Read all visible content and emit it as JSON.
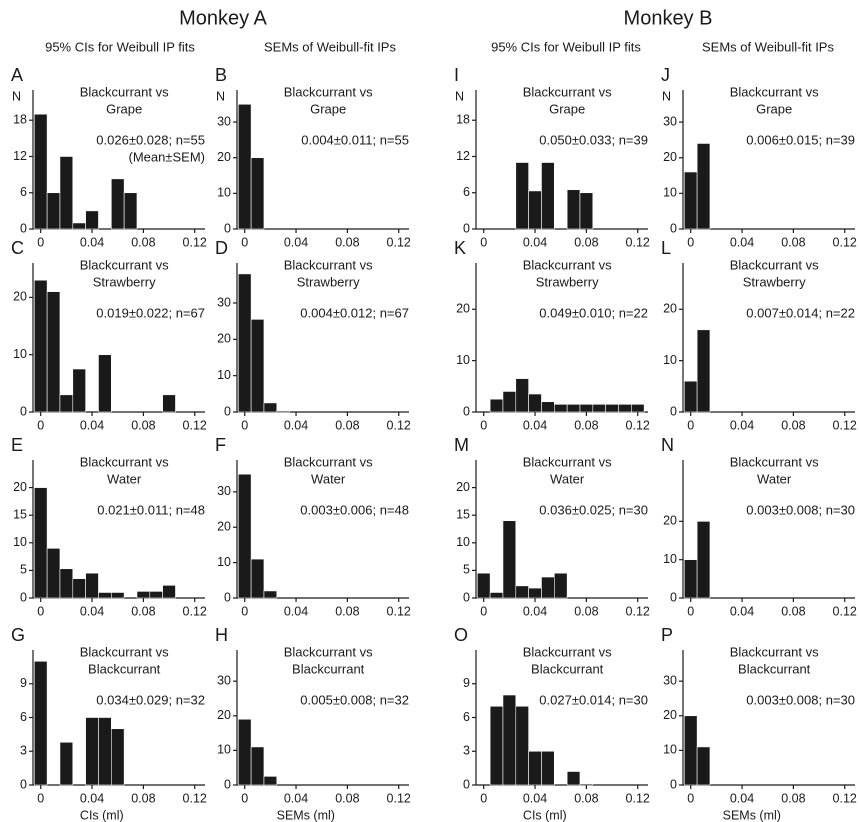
{
  "figure": {
    "monkeys": [
      "Monkey A",
      "Monkey B"
    ],
    "columns": [
      "95% CIs for Weibull IP fits",
      "SEMs of Weibull-fit IPs",
      "95% CIs for Weibull IP fits",
      "SEMs of Weibull-fit IPs"
    ]
  },
  "chart_data": [
    {
      "type": "histogram",
      "panel": "A",
      "title": [
        "Blackcurrant vs",
        "Grape"
      ],
      "annotation": [
        "0.026±0.028; n=55",
        "(Mean±SEM)"
      ],
      "ylabel": "N",
      "color": "#1a1a1a",
      "bins": [
        -0.005,
        0.005,
        0.015,
        0.025,
        0.035,
        0.045,
        0.055,
        0.065,
        0.075,
        0.085,
        0.095,
        0.105,
        0.115,
        0.125
      ],
      "counts": [
        19,
        6,
        12,
        1,
        3,
        0,
        8.3,
        6,
        0,
        0,
        0,
        0,
        0
      ],
      "xlim": [
        -0.006,
        0.128
      ],
      "xticks": [
        0,
        0.04,
        0.08,
        0.12
      ],
      "ylim": [
        0,
        23
      ],
      "yticks": [
        0,
        6,
        12,
        18
      ]
    },
    {
      "type": "histogram",
      "panel": "B",
      "title": [
        "Blackcurrant vs",
        "Grape"
      ],
      "annotation": [
        "0.004±0.011; n=55"
      ],
      "ylabel": "N",
      "color": "#1a1a1a",
      "bins": [
        -0.005,
        0.005,
        0.015,
        0.025,
        0.035,
        0.045,
        0.055,
        0.065,
        0.075,
        0.085,
        0.095,
        0.105,
        0.115,
        0.125
      ],
      "counts": [
        35,
        20,
        0,
        0,
        0,
        0,
        0,
        0,
        0,
        0,
        0,
        0,
        0
      ],
      "xlim": [
        -0.006,
        0.128
      ],
      "xticks": [
        0,
        0.04,
        0.08,
        0.12
      ],
      "ylim": [
        0,
        39
      ],
      "yticks": [
        0,
        10,
        20,
        30
      ]
    },
    {
      "type": "histogram",
      "panel": "I",
      "title": [
        "Blackcurrant vs",
        "Grape"
      ],
      "annotation": [
        "0.050±0.033; n=39"
      ],
      "ylabel": "N",
      "color": "#1a1a1a",
      "bins": [
        -0.005,
        0.005,
        0.015,
        0.025,
        0.035,
        0.045,
        0.055,
        0.065,
        0.075,
        0.085,
        0.095,
        0.105,
        0.115,
        0.125
      ],
      "counts": [
        0,
        0,
        0,
        11,
        6.3,
        11,
        0,
        6.5,
        6,
        0,
        0,
        0,
        0
      ],
      "xlim": [
        -0.006,
        0.128
      ],
      "xticks": [
        0,
        0.04,
        0.08,
        0.12
      ],
      "ylim": [
        0,
        23
      ],
      "yticks": [
        0,
        6,
        12,
        18
      ]
    },
    {
      "type": "histogram",
      "panel": "J",
      "title": [
        "Blackcurrant vs",
        "Grape"
      ],
      "annotation": [
        "0.006±0.015; n=39"
      ],
      "ylabel": "N",
      "color": "#1a1a1a",
      "bins": [
        -0.005,
        0.005,
        0.015,
        0.025,
        0.035,
        0.045,
        0.055,
        0.065,
        0.075,
        0.085,
        0.095,
        0.105,
        0.115,
        0.125
      ],
      "counts": [
        16,
        24,
        0,
        0,
        0,
        0,
        0,
        0,
        0,
        0,
        0,
        0,
        0
      ],
      "xlim": [
        -0.006,
        0.128
      ],
      "xticks": [
        0,
        0.04,
        0.08,
        0.12
      ],
      "ylim": [
        0,
        39
      ],
      "yticks": [
        0,
        10,
        20,
        30
      ]
    },
    {
      "type": "histogram",
      "panel": "C",
      "title": [
        "Blackcurrant vs",
        "Strawberry"
      ],
      "annotation": [
        "0.019±0.022; n=67"
      ],
      "color": "#1a1a1a",
      "bins": [
        -0.005,
        0.005,
        0.015,
        0.025,
        0.035,
        0.045,
        0.055,
        0.065,
        0.075,
        0.085,
        0.095,
        0.105,
        0.115,
        0.125
      ],
      "counts": [
        23,
        21,
        3,
        7.5,
        0,
        10,
        0,
        0,
        0,
        0,
        3,
        0,
        0
      ],
      "xlim": [
        -0.006,
        0.128
      ],
      "xticks": [
        0,
        0.04,
        0.08,
        0.12
      ],
      "ylim": [
        0,
        26
      ],
      "yticks": [
        0,
        10,
        20
      ]
    },
    {
      "type": "histogram",
      "panel": "D",
      "title": [
        "Blackcurrant vs",
        "Strawberry"
      ],
      "annotation": [
        "0.004±0.012; n=67"
      ],
      "color": "#1a1a1a",
      "bins": [
        -0.005,
        0.005,
        0.015,
        0.025,
        0.035,
        0.045,
        0.055,
        0.065,
        0.075,
        0.085,
        0.095,
        0.105,
        0.115,
        0.125
      ],
      "counts": [
        38,
        25.5,
        2.5,
        0.3,
        0,
        0,
        0,
        0,
        0,
        0,
        0,
        0,
        0
      ],
      "xlim": [
        -0.006,
        0.128
      ],
      "xticks": [
        0,
        0.04,
        0.08,
        0.12
      ],
      "ylim": [
        0,
        41
      ],
      "yticks": [
        0,
        10,
        20,
        30
      ]
    },
    {
      "type": "histogram",
      "panel": "K",
      "title": [
        "Blackcurrant vs",
        "Strawberry"
      ],
      "annotation": [
        "0.049±0.010; n=22"
      ],
      "color": "#1a1a1a",
      "bins": [
        -0.005,
        0.005,
        0.015,
        0.025,
        0.035,
        0.045,
        0.055,
        0.065,
        0.075,
        0.085,
        0.095,
        0.105,
        0.115,
        0.125
      ],
      "counts": [
        0,
        2.5,
        4,
        6.5,
        3.5,
        2,
        1.5,
        1.5,
        1.5,
        1.5,
        1.5,
        1.5,
        1.5
      ],
      "xlim": [
        -0.006,
        0.128
      ],
      "xticks": [
        0,
        0.04,
        0.08,
        0.12
      ],
      "ylim": [
        0,
        29
      ],
      "yticks": [
        0,
        10,
        20
      ]
    },
    {
      "type": "histogram",
      "panel": "L",
      "title": [
        "Blackcurrant vs",
        "Strawberry"
      ],
      "annotation": [
        "0.007±0.014; n=22"
      ],
      "color": "#1a1a1a",
      "bins": [
        -0.005,
        0.005,
        0.015,
        0.025,
        0.035,
        0.045,
        0.055,
        0.065,
        0.075,
        0.085,
        0.095,
        0.105,
        0.115,
        0.125
      ],
      "counts": [
        6,
        16,
        0,
        0,
        0,
        0,
        0,
        0,
        0,
        0,
        0,
        0,
        0
      ],
      "xlim": [
        -0.006,
        0.128
      ],
      "xticks": [
        0,
        0.04,
        0.08,
        0.12
      ],
      "ylim": [
        0,
        29
      ],
      "yticks": [
        0,
        10,
        20
      ]
    },
    {
      "type": "histogram",
      "panel": "E",
      "title": [
        "Blackcurrant vs",
        "Water"
      ],
      "annotation": [
        "0.021±0.011; n=48"
      ],
      "color": "#1a1a1a",
      "bins": [
        -0.005,
        0.005,
        0.015,
        0.025,
        0.035,
        0.045,
        0.055,
        0.065,
        0.075,
        0.085,
        0.095,
        0.105,
        0.115,
        0.125
      ],
      "counts": [
        20,
        9,
        5.3,
        3.5,
        4.5,
        1,
        1,
        0,
        1.2,
        1.2,
        2.3,
        0,
        0
      ],
      "xlim": [
        -0.006,
        0.128
      ],
      "xticks": [
        0,
        0.04,
        0.08,
        0.12
      ],
      "ylim": [
        0,
        25
      ],
      "yticks": [
        0,
        5,
        10,
        15,
        20
      ]
    },
    {
      "type": "histogram",
      "panel": "F",
      "title": [
        "Blackcurrant vs",
        "Water"
      ],
      "annotation": [
        "0.003±0.006; n=48"
      ],
      "color": "#1a1a1a",
      "bins": [
        -0.005,
        0.005,
        0.015,
        0.025,
        0.035,
        0.045,
        0.055,
        0.065,
        0.075,
        0.085,
        0.095,
        0.105,
        0.115,
        0.125
      ],
      "counts": [
        35,
        11,
        2,
        0,
        0,
        0,
        0,
        0,
        0,
        0,
        0,
        0,
        0
      ],
      "xlim": [
        -0.006,
        0.128
      ],
      "xticks": [
        0,
        0.04,
        0.08,
        0.12
      ],
      "ylim": [
        0,
        39
      ],
      "yticks": [
        0,
        10,
        20,
        30
      ]
    },
    {
      "type": "histogram",
      "panel": "M",
      "title": [
        "Blackcurrant vs",
        "Water"
      ],
      "annotation": [
        "0.036±0.025; n=30"
      ],
      "color": "#1a1a1a",
      "bins": [
        -0.005,
        0.005,
        0.015,
        0.025,
        0.035,
        0.045,
        0.055,
        0.065,
        0.075,
        0.085,
        0.095,
        0.105,
        0.115,
        0.125
      ],
      "counts": [
        4.5,
        1,
        14,
        2.2,
        1.8,
        3.8,
        4.5,
        0,
        0,
        0,
        0,
        0,
        0
      ],
      "xlim": [
        -0.006,
        0.128
      ],
      "xticks": [
        0,
        0.04,
        0.08,
        0.12
      ],
      "ylim": [
        0,
        25
      ],
      "yticks": [
        0,
        5,
        10,
        15,
        20
      ]
    },
    {
      "type": "histogram",
      "panel": "N",
      "title": [
        "Blackcurrant vs",
        "Water"
      ],
      "annotation": [
        "0.003±0.008; n=30"
      ],
      "color": "#1a1a1a",
      "bins": [
        -0.005,
        0.005,
        0.015,
        0.025,
        0.035,
        0.045,
        0.055,
        0.065,
        0.075,
        0.085,
        0.095,
        0.105,
        0.115,
        0.125
      ],
      "counts": [
        10,
        20,
        0,
        0,
        0,
        0,
        0,
        0,
        0,
        0,
        0,
        0,
        0
      ],
      "xlim": [
        -0.006,
        0.128
      ],
      "xticks": [
        0,
        0.04,
        0.08,
        0.12
      ],
      "ylim": [
        0,
        36
      ],
      "yticks": [
        0,
        10,
        20
      ]
    },
    {
      "type": "histogram",
      "panel": "G",
      "title": [
        "Blackcurrant vs",
        "Blackcurrant"
      ],
      "annotation": [
        "0.034±0.029; n=32"
      ],
      "xlabel": "CIs (ml)",
      "color": "#1a1a1a",
      "bins": [
        -0.005,
        0.005,
        0.015,
        0.025,
        0.035,
        0.045,
        0.055,
        0.065,
        0.075,
        0.085,
        0.095,
        0.105,
        0.115,
        0.125
      ],
      "counts": [
        11,
        0,
        3.8,
        0,
        6,
        6,
        5,
        0,
        0,
        0,
        0,
        0,
        0
      ],
      "xlim": [
        -0.006,
        0.128
      ],
      "xticks": [
        0,
        0.04,
        0.08,
        0.12
      ],
      "ylim": [
        0,
        12
      ],
      "yticks": [
        0,
        3,
        6,
        9
      ]
    },
    {
      "type": "histogram",
      "panel": "H",
      "title": [
        "Blackcurrant vs",
        "Blackcurrant"
      ],
      "annotation": [
        "0.005±0.008; n=32"
      ],
      "xlabel": "SEMs (ml)",
      "color": "#1a1a1a",
      "bins": [
        -0.005,
        0.005,
        0.015,
        0.025,
        0.035,
        0.045,
        0.055,
        0.065,
        0.075,
        0.085,
        0.095,
        0.105,
        0.115,
        0.125
      ],
      "counts": [
        19,
        11,
        2.5,
        0,
        0,
        0,
        0,
        0,
        0,
        0,
        0,
        0,
        0
      ],
      "xlim": [
        -0.006,
        0.128
      ],
      "xticks": [
        0,
        0.04,
        0.08,
        0.12
      ],
      "ylim": [
        0,
        39
      ],
      "yticks": [
        0,
        10,
        20,
        30
      ]
    },
    {
      "type": "histogram",
      "panel": "O",
      "title": [
        "Blackcurrant vs",
        "Blackcurrant"
      ],
      "annotation": [
        "0.027±0.014; n=30"
      ],
      "xlabel": "CIs (ml)",
      "color": "#1a1a1a",
      "bins": [
        -0.005,
        0.005,
        0.015,
        0.025,
        0.035,
        0.045,
        0.055,
        0.065,
        0.075,
        0.085,
        0.095,
        0.105,
        0.115,
        0.125
      ],
      "counts": [
        0,
        7,
        8,
        7,
        3,
        3,
        0,
        1.2,
        0.1,
        0,
        0,
        0,
        0
      ],
      "xlim": [
        -0.006,
        0.128
      ],
      "xticks": [
        0,
        0.04,
        0.08,
        0.12
      ],
      "ylim": [
        0,
        12
      ],
      "yticks": [
        0,
        3,
        6,
        9
      ]
    },
    {
      "type": "histogram",
      "panel": "P",
      "title": [
        "Blackcurrant vs",
        "Blackcurrant"
      ],
      "annotation": [
        "0.003±0.008; n=30"
      ],
      "xlabel": "SEMs (ml)",
      "color": "#1a1a1a",
      "bins": [
        -0.005,
        0.005,
        0.015,
        0.025,
        0.035,
        0.045,
        0.055,
        0.065,
        0.075,
        0.085,
        0.095,
        0.105,
        0.115,
        0.125
      ],
      "counts": [
        20,
        11,
        0,
        0,
        0,
        0,
        0,
        0,
        0,
        0,
        0,
        0,
        0
      ],
      "xlim": [
        -0.006,
        0.128
      ],
      "xticks": [
        0,
        0.04,
        0.08,
        0.12
      ],
      "ylim": [
        0,
        39
      ],
      "yticks": [
        0,
        10,
        20,
        30
      ]
    }
  ]
}
